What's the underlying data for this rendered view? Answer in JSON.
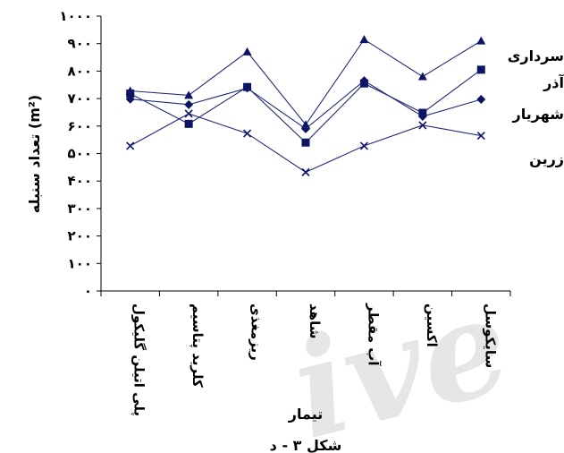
{
  "chart_data": {
    "type": "line",
    "categories": [
      "پلی اتیلن گلیکول",
      "کلرید پتاسیم",
      "ریزمغذی",
      "شاهد",
      "آب مقطر",
      "اکسین",
      "سایکوسل"
    ],
    "series": [
      {
        "name": "سرداری",
        "marker": "triangle",
        "values": [
          728,
          712,
          870,
          605,
          915,
          780,
          910
        ]
      },
      {
        "name": "آذر",
        "marker": "square",
        "values": [
          718,
          608,
          742,
          540,
          755,
          648,
          805
        ]
      },
      {
        "name": "شهریار",
        "marker": "diamond",
        "values": [
          698,
          678,
          738,
          590,
          765,
          635,
          697
        ]
      },
      {
        "name": "زرین",
        "marker": "x",
        "values": [
          528,
          645,
          573,
          432,
          528,
          603,
          565
        ]
      }
    ],
    "yticks": [
      "۱۰۰۰",
      "۹۰۰",
      "۸۰۰",
      "۷۰۰",
      "۶۰۰",
      "۵۰۰",
      "۴۰۰",
      "۳۰۰",
      "۲۰۰",
      "۱۰۰",
      "۰"
    ],
    "ylim": [
      0,
      1000
    ],
    "ylabel": "تعداد سنبله (m²)",
    "xlabel": "تیمار",
    "caption": "شکل ۳ - د",
    "watermark": "ive",
    "grid": false,
    "legend_position": "right"
  }
}
